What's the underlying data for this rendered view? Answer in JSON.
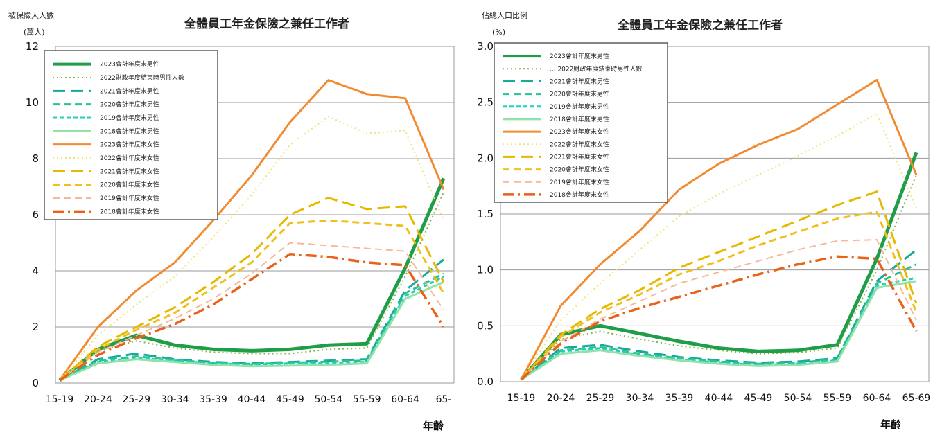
{
  "chart_data": [
    {
      "type": "line",
      "title": "全體員工年金保險之兼任工作者",
      "ylabel_line1": "被保險人人數",
      "ylabel_line2": "(萬人)",
      "xlabel": "年齡",
      "x": [
        "15-19",
        "20-24",
        "25-29",
        "30-34",
        "35-39",
        "40-44",
        "45-49",
        "50-54",
        "55-59",
        "60-64",
        "65-"
      ],
      "ylim": [
        0,
        12
      ],
      "yticks": [
        "0",
        "2",
        "4",
        "6",
        "8",
        "10",
        "12"
      ],
      "grid": true,
      "legend_position": "top-left",
      "series": [
        {
          "name": "2023會計年度末男性",
          "color": "#1f9d48",
          "dash": "solid",
          "width": 5,
          "values": [
            0.1,
            1.2,
            1.7,
            1.35,
            1.2,
            1.15,
            1.2,
            1.35,
            1.4,
            4.1,
            7.3
          ]
        },
        {
          "name": "2022財政年度結束時男性人數",
          "color": "#7ab648",
          "dash": "dot",
          "width": 2,
          "values": [
            0.1,
            1.15,
            1.5,
            1.25,
            1.1,
            1.05,
            1.05,
            1.2,
            1.25,
            3.8,
            6.8
          ]
        },
        {
          "name": "2021會計年度末男性",
          "color": "#17a99a",
          "dash": "longdash",
          "width": 3,
          "values": [
            0.1,
            0.85,
            1.05,
            0.85,
            0.75,
            0.7,
            0.75,
            0.8,
            0.85,
            3.3,
            4.4
          ]
        },
        {
          "name": "2020會計年度末男性",
          "color": "#2fbf8f",
          "dash": "dash",
          "width": 3,
          "values": [
            0.1,
            0.8,
            0.95,
            0.82,
            0.72,
            0.68,
            0.72,
            0.76,
            0.8,
            3.2,
            3.9
          ]
        },
        {
          "name": "2019會計年度末男性",
          "color": "#20d0b8",
          "dash": "shortdash",
          "width": 3,
          "values": [
            0.1,
            0.75,
            0.9,
            0.8,
            0.7,
            0.66,
            0.7,
            0.72,
            0.75,
            3.1,
            3.8
          ]
        },
        {
          "name": "2018會計年度末男性",
          "color": "#8fe3a8",
          "dash": "solid",
          "width": 3,
          "values": [
            0.1,
            0.7,
            0.85,
            0.75,
            0.65,
            0.6,
            0.62,
            0.65,
            0.7,
            3.0,
            3.6
          ]
        },
        {
          "name": "2023會計年度末女性",
          "color": "#f28a30",
          "dash": "solid",
          "width": 3,
          "values": [
            0.1,
            2.0,
            3.3,
            4.3,
            5.8,
            7.4,
            9.3,
            10.8,
            10.3,
            10.15,
            6.9
          ]
        },
        {
          "name": "2022會計年度末女性",
          "color": "#f2e27a",
          "dash": "dot",
          "width": 2,
          "values": [
            0.1,
            1.7,
            2.8,
            3.8,
            5.2,
            6.7,
            8.5,
            9.5,
            8.9,
            9.0,
            5.8
          ]
        },
        {
          "name": "2021會計年度末女性",
          "color": "#e6b800",
          "dash": "longdash",
          "width": 3,
          "values": [
            0.1,
            1.3,
            2.0,
            2.7,
            3.6,
            4.6,
            6.0,
            6.6,
            6.2,
            6.3,
            3.6
          ]
        },
        {
          "name": "2020會計年度末女性",
          "color": "#f0c020",
          "dash": "dash",
          "width": 3,
          "values": [
            0.1,
            1.2,
            1.9,
            2.5,
            3.4,
            4.3,
            5.7,
            5.8,
            5.7,
            5.6,
            3.2
          ]
        },
        {
          "name": "2019會計年度末女性",
          "color": "#f4b99a",
          "dash": "dash",
          "width": 2,
          "values": [
            0.1,
            1.1,
            1.7,
            2.3,
            3.0,
            3.9,
            5.0,
            4.9,
            4.8,
            4.7,
            2.6
          ]
        },
        {
          "name": "2018會計年度末女性",
          "color": "#e8621a",
          "dash": "dashdot",
          "width": 3.5,
          "values": [
            0.1,
            1.0,
            1.6,
            2.1,
            2.8,
            3.7,
            4.6,
            4.5,
            4.3,
            4.2,
            2.0
          ]
        }
      ]
    },
    {
      "type": "line",
      "title": "全體員工年金保險之兼任工作者",
      "ylabel_line1": "佔總人口比例",
      "ylabel_line2": "(%)",
      "xlabel": "年齡",
      "x": [
        "15-19",
        "20-24",
        "25-29",
        "30-34",
        "35-39",
        "40-44",
        "45-49",
        "50-54",
        "55-59",
        "60-64",
        "65-69"
      ],
      "ylim": [
        0,
        3.0
      ],
      "yticks": [
        "0.0",
        "0.5",
        "1.0",
        "1.5",
        "2.0",
        "2.5",
        "3.0"
      ],
      "grid": true,
      "legend_position": "top-left",
      "series": [
        {
          "name": "2023會計年度末男性",
          "color": "#1f9d48",
          "dash": "solid",
          "width": 5,
          "values": [
            0.02,
            0.42,
            0.5,
            0.43,
            0.36,
            0.3,
            0.27,
            0.28,
            0.33,
            1.1,
            2.05
          ]
        },
        {
          "name": "... 2022財政年度結束時男性人數",
          "color": "#7ab648",
          "dash": "dot",
          "width": 2,
          "values": [
            0.02,
            0.38,
            0.45,
            0.38,
            0.32,
            0.28,
            0.25,
            0.26,
            0.3,
            1.0,
            1.85
          ]
        },
        {
          "name": "2021會計年度末男性",
          "color": "#17a99a",
          "dash": "longdash",
          "width": 3,
          "values": [
            0.02,
            0.3,
            0.33,
            0.27,
            0.22,
            0.19,
            0.17,
            0.18,
            0.21,
            0.9,
            1.18
          ]
        },
        {
          "name": "2020會計年度末男性",
          "color": "#2fbf8f",
          "dash": "dash",
          "width": 3,
          "values": [
            0.02,
            0.28,
            0.31,
            0.25,
            0.21,
            0.18,
            0.16,
            0.17,
            0.2,
            0.88,
            1.05
          ]
        },
        {
          "name": "2019會計年度末男性",
          "color": "#20d0b8",
          "dash": "shortdash",
          "width": 3,
          "values": [
            0.02,
            0.27,
            0.3,
            0.24,
            0.2,
            0.17,
            0.15,
            0.16,
            0.19,
            0.86,
            0.93
          ]
        },
        {
          "name": "2018會計年度末男性",
          "color": "#8fe3a8",
          "dash": "solid",
          "width": 3,
          "values": [
            0.02,
            0.25,
            0.28,
            0.23,
            0.19,
            0.16,
            0.14,
            0.15,
            0.18,
            0.84,
            0.9
          ]
        },
        {
          "name": "2023會計年度末女性",
          "color": "#f28a30",
          "dash": "solid",
          "width": 3,
          "values": [
            0.02,
            0.68,
            1.05,
            1.35,
            1.72,
            1.95,
            2.12,
            2.26,
            2.48,
            2.7,
            1.85
          ]
        },
        {
          "name": "2022會計年度末女性",
          "color": "#f2e27a",
          "dash": "dot",
          "width": 2,
          "values": [
            0.02,
            0.55,
            0.88,
            1.18,
            1.48,
            1.68,
            1.85,
            2.02,
            2.2,
            2.4,
            1.55
          ]
        },
        {
          "name": "2021會計年度末女性",
          "color": "#e6b800",
          "dash": "longdash",
          "width": 3,
          "values": [
            0.02,
            0.42,
            0.65,
            0.82,
            1.02,
            1.16,
            1.3,
            1.44,
            1.58,
            1.7,
            0.7
          ]
        },
        {
          "name": "2020會計年度末女性",
          "color": "#f0c020",
          "dash": "dash",
          "width": 3,
          "values": [
            0.02,
            0.4,
            0.62,
            0.78,
            0.96,
            1.08,
            1.22,
            1.34,
            1.46,
            1.52,
            0.62
          ]
        },
        {
          "name": "2019會計年度末女性",
          "color": "#f4b99a",
          "dash": "dash",
          "width": 2,
          "values": [
            0.02,
            0.36,
            0.56,
            0.72,
            0.88,
            0.98,
            1.08,
            1.18,
            1.26,
            1.27,
            0.55
          ]
        },
        {
          "name": "2018會計年度末女性",
          "color": "#e8621a",
          "dash": "dashdot",
          "width": 3.5,
          "values": [
            0.02,
            0.34,
            0.54,
            0.66,
            0.76,
            0.86,
            0.96,
            1.05,
            1.12,
            1.1,
            0.45
          ]
        }
      ]
    }
  ]
}
